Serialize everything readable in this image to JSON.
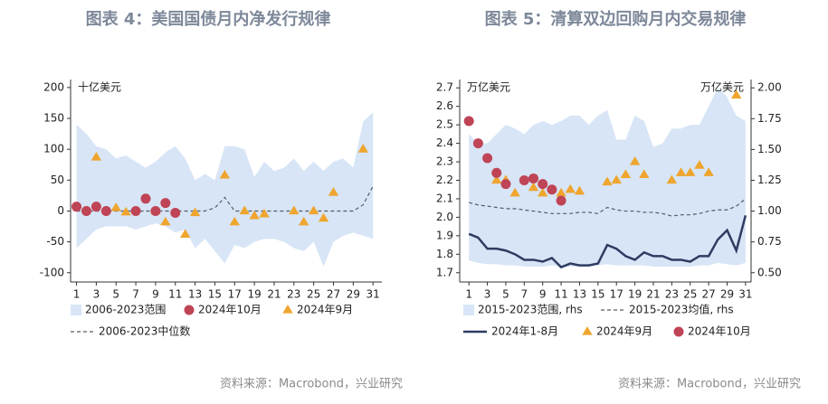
{
  "chart_data": [
    {
      "type": "line",
      "title": "图表 4：美国国债月内净发行规律",
      "unit_label": "十亿美元",
      "source": "资料来源：Macrobond，兴业研究",
      "x": [
        1,
        2,
        3,
        4,
        5,
        6,
        7,
        8,
        9,
        10,
        11,
        12,
        13,
        14,
        15,
        16,
        17,
        18,
        19,
        20,
        21,
        22,
        23,
        24,
        25,
        26,
        27,
        28,
        29,
        30,
        31
      ],
      "xlim": [
        0.4,
        31.9
      ],
      "xticks": [
        1,
        3,
        5,
        7,
        9,
        11,
        13,
        15,
        17,
        19,
        21,
        23,
        25,
        27,
        29,
        31
      ],
      "ylim": [
        -115,
        213
      ],
      "yticks": [
        200,
        150,
        100,
        50,
        0,
        -50,
        -100
      ],
      "series": [
        {
          "name": "2006-2023范围",
          "style": "band",
          "color": "#d7e5f6",
          "upper": [
            140,
            125,
            105,
            100,
            85,
            90,
            80,
            70,
            80,
            95,
            105,
            85,
            50,
            60,
            50,
            105,
            105,
            100,
            55,
            80,
            65,
            70,
            85,
            65,
            80,
            65,
            80,
            85,
            70,
            145,
            160
          ],
          "lower": [
            -60,
            -45,
            -30,
            -25,
            -25,
            -25,
            -30,
            -25,
            -20,
            -25,
            -35,
            -30,
            -60,
            -45,
            -65,
            -85,
            -55,
            -60,
            -50,
            -45,
            -45,
            -50,
            -60,
            -65,
            -50,
            -90,
            -50,
            -40,
            -35,
            -40,
            -45
          ]
        },
        {
          "name": "2024年10月",
          "style": "circle",
          "color": "#bf4455",
          "x": [
            1,
            2,
            3,
            4,
            7,
            8,
            9,
            10,
            11
          ],
          "values": [
            7,
            0,
            7,
            0,
            0,
            20,
            0,
            13,
            -3
          ]
        },
        {
          "name": "2024年9月",
          "style": "triangle",
          "color": "#efa52e",
          "x": [
            3,
            5,
            6,
            9,
            10,
            12,
            13,
            16,
            17,
            18,
            19,
            20,
            23,
            24,
            25,
            26,
            27,
            30
          ],
          "values": [
            87,
            5,
            -2,
            0,
            -18,
            -38,
            -3,
            58,
            -18,
            0,
            -8,
            -5,
            0,
            -18,
            0,
            -12,
            30,
            100
          ]
        },
        {
          "name": "2006-2023中位数",
          "style": "dashed",
          "color": "#555c66",
          "values": [
            0,
            0,
            0,
            0,
            0,
            0,
            0,
            0,
            0,
            0,
            0,
            0,
            0,
            0,
            5,
            22,
            0,
            0,
            0,
            0,
            0,
            0,
            0,
            0,
            0,
            0,
            0,
            0,
            0,
            10,
            40
          ]
        }
      ]
    },
    {
      "type": "line",
      "title": "图表 5：清算双边回购月内交易规律",
      "unit_label": "万亿美元",
      "y2_unit_label": "万亿美元",
      "source": "资料来源：Macrobond，兴业研究",
      "x": [
        1,
        2,
        3,
        4,
        5,
        6,
        7,
        8,
        9,
        10,
        11,
        12,
        13,
        14,
        15,
        16,
        17,
        18,
        19,
        20,
        21,
        22,
        23,
        24,
        25,
        26,
        27,
        28,
        29,
        30,
        31
      ],
      "xlim": [
        0,
        31.6
      ],
      "xticks": [
        1,
        3,
        5,
        7,
        9,
        11,
        13,
        15,
        17,
        19,
        21,
        23,
        25,
        27,
        29,
        31
      ],
      "ylim": [
        1.65,
        2.745
      ],
      "yticks": [
        2.7,
        2.6,
        2.5,
        2.4,
        2.3,
        2.2,
        2.1,
        {
          "value": 2,
          "label": "2.0"
        },
        1.9,
        1.8,
        1.7
      ],
      "y2lim": [
        0.425,
        2.0675
      ],
      "y2ticks": [
        {
          "value": 2,
          "label": "2.00"
        },
        {
          "value": 1.75,
          "label": "1.75"
        },
        {
          "value": 1.5,
          "label": "1.50"
        },
        {
          "value": 1.25,
          "label": "1.25"
        },
        {
          "value": 1,
          "label": "1.00"
        },
        {
          "value": 0.75,
          "label": "0.75"
        },
        {
          "value": 0.5,
          "label": "0.50"
        }
      ],
      "series": [
        {
          "name": "2015-2023范围, rhs",
          "style": "band",
          "axis": "y2",
          "color": "#d7e5f6",
          "upper": [
            1.625,
            1.55,
            1.55,
            1.625,
            1.7,
            1.67,
            1.625,
            1.7,
            1.73,
            1.7,
            1.73,
            1.775,
            1.775,
            1.7,
            1.775,
            1.82,
            1.58,
            1.58,
            1.775,
            1.73,
            1.52,
            1.55,
            1.67,
            1.67,
            1.7,
            1.7,
            1.85,
            2.0,
            1.925,
            1.775,
            1.73
          ],
          "lower": [
            0.6,
            0.58,
            0.57,
            0.57,
            0.56,
            0.56,
            0.55,
            0.55,
            0.55,
            0.56,
            0.55,
            0.55,
            0.55,
            0.55,
            0.56,
            0.57,
            0.56,
            0.56,
            0.56,
            0.56,
            0.55,
            0.55,
            0.55,
            0.55,
            0.55,
            0.56,
            0.56,
            0.58,
            0.57,
            0.56,
            0.58
          ]
        },
        {
          "name": "2015-2023均值, rhs",
          "style": "dashed",
          "axis": "y2",
          "color": "#555c66",
          "values": [
            1.07,
            1.05,
            1.04,
            1.03,
            1.02,
            1.02,
            1.01,
            1.0,
            0.99,
            0.98,
            0.98,
            0.98,
            0.99,
            0.99,
            0.98,
            1.03,
            1.01,
            1.0,
            1.0,
            0.99,
            0.99,
            0.98,
            0.96,
            0.97,
            0.97,
            0.98,
            1.0,
            1.01,
            1.01,
            1.04,
            1.1
          ]
        },
        {
          "name": "2024年1-8月",
          "style": "solid",
          "color": "#2e3c62",
          "values": [
            1.91,
            1.89,
            1.83,
            1.83,
            1.82,
            1.8,
            1.77,
            1.77,
            1.76,
            1.78,
            1.73,
            1.75,
            1.74,
            1.74,
            1.75,
            1.85,
            1.83,
            1.79,
            1.77,
            1.81,
            1.79,
            1.79,
            1.77,
            1.77,
            1.76,
            1.79,
            1.79,
            1.88,
            1.93,
            1.82,
            2.01
          ]
        },
        {
          "name": "2024年9月",
          "style": "triangle",
          "color": "#efa52e",
          "x": [
            4,
            5,
            6,
            8,
            9,
            11,
            12,
            13,
            16,
            17,
            18,
            19,
            20,
            23,
            24,
            25,
            26,
            27,
            30
          ],
          "values": [
            2.2,
            2.2,
            2.13,
            2.16,
            2.13,
            2.13,
            2.15,
            2.14,
            2.19,
            2.2,
            2.23,
            2.3,
            2.23,
            2.2,
            2.24,
            2.24,
            2.28,
            2.24,
            2.66
          ]
        },
        {
          "name": "2024年10月",
          "style": "circle",
          "color": "#bf4455",
          "x": [
            1,
            2,
            3,
            4,
            5,
            7,
            8,
            9,
            10,
            11
          ],
          "values": [
            2.52,
            2.4,
            2.32,
            2.24,
            2.18,
            2.2,
            2.21,
            2.18,
            2.15,
            2.09
          ]
        }
      ]
    }
  ]
}
